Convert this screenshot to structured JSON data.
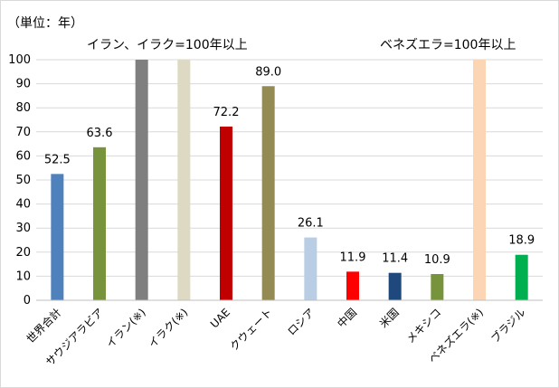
{
  "chart_data": {
    "type": "bar",
    "unit_label": "（単位：年）",
    "notes": [
      "イラン、イラク=100年以上",
      "ベネズエラ=100年以上"
    ],
    "categories": [
      "世界合計",
      "サウジアラビア",
      "イラン(※)",
      "イラク(※)",
      "UAE",
      "クウェート",
      "ロシア",
      "中国",
      "米国",
      "メキシコ",
      "ベネズエラ(※)",
      "ブラジル"
    ],
    "values": [
      52.5,
      63.6,
      100,
      100,
      72.2,
      89.0,
      26.1,
      11.9,
      11.4,
      10.9,
      100,
      18.9
    ],
    "data_labels": [
      "52.5",
      "63.6",
      "",
      "",
      "72.2",
      "89.0",
      "26.1",
      "11.9",
      "11.4",
      "10.9",
      "",
      "18.9"
    ],
    "colors": [
      "#4f81bd",
      "#77933c",
      "#7f7f7f",
      "#ddd9c3",
      "#c00000",
      "#948a54",
      "#b9cde5",
      "#ff0000",
      "#1f497d",
      "#77933c",
      "#fcd5b5",
      "#00b050"
    ],
    "ylim": [
      0,
      100
    ],
    "yticks": [
      0,
      10,
      20,
      30,
      40,
      50,
      60,
      70,
      80,
      90,
      100
    ],
    "grid": true,
    "legend": "none"
  }
}
